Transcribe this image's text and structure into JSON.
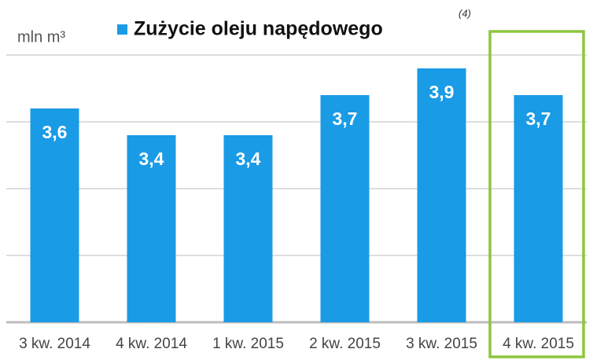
{
  "chart_data": {
    "type": "bar",
    "title": "Zużycie oleju napędowego",
    "title_note": "(4)",
    "y_label": "mln m³",
    "categories": [
      "3 kw. 2014",
      "4 kw. 2014",
      "1 kw. 2015",
      "2 kw. 2015",
      "3 kw. 2015",
      "4 kw. 2015"
    ],
    "values": [
      3.6,
      3.4,
      3.4,
      3.7,
      3.9,
      3.7
    ],
    "value_labels": [
      "3,6",
      "3,4",
      "3,4",
      "3,7",
      "3,9",
      "3,7"
    ],
    "color": "#1a9be6",
    "ylim": [
      2,
      4
    ],
    "yticks": [
      2,
      2.5,
      3,
      3.5,
      4
    ],
    "grid": true
  }
}
